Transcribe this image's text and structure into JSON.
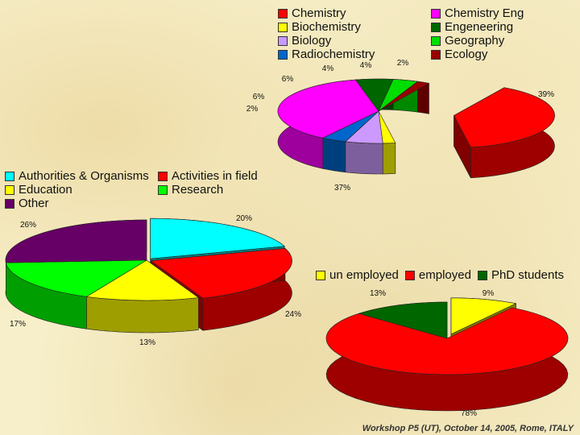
{
  "footer": "Workshop P5 (UT), October 14, 2005, Rome, ITALY",
  "chart_data": [
    {
      "type": "pie",
      "categories": [
        "Chemistry",
        "Biochemistry",
        "Biology",
        "Radiochemistry",
        "Chemistry Eng",
        "Engeneering",
        "Geography",
        "Ecology"
      ],
      "values": [
        39,
        2,
        6,
        4,
        37,
        6,
        4,
        2
      ],
      "labels": [
        "39%",
        "2%",
        "6%",
        "4%",
        "37%",
        "6%",
        "4%",
        "2%"
      ],
      "colors": [
        "#ff0000",
        "#ffff00",
        "#cc99ff",
        "#0066cc",
        "#ff00ff",
        "#006600",
        "#00dd00",
        "#990000"
      ],
      "legend": "top, two columns"
    },
    {
      "type": "pie",
      "categories": [
        "Authorities & Organisms",
        "Activities in field",
        "Education",
        "Research",
        "Other"
      ],
      "values": [
        20,
        24,
        13,
        17,
        26
      ],
      "labels": [
        "20%",
        "24%",
        "13%",
        "17%",
        "26%"
      ],
      "colors": [
        "#00ffff",
        "#ff0000",
        "#ffff00",
        "#00ff00",
        "#660066"
      ],
      "legend": "top-left, two columns"
    },
    {
      "type": "pie",
      "categories": [
        "un employed",
        "employed",
        "PhD students"
      ],
      "values": [
        9,
        78,
        13
      ],
      "labels": [
        "9%",
        "78%",
        "13%"
      ],
      "colors": [
        "#ffff00",
        "#ff0000",
        "#006600"
      ],
      "legend": "top, one row"
    }
  ]
}
